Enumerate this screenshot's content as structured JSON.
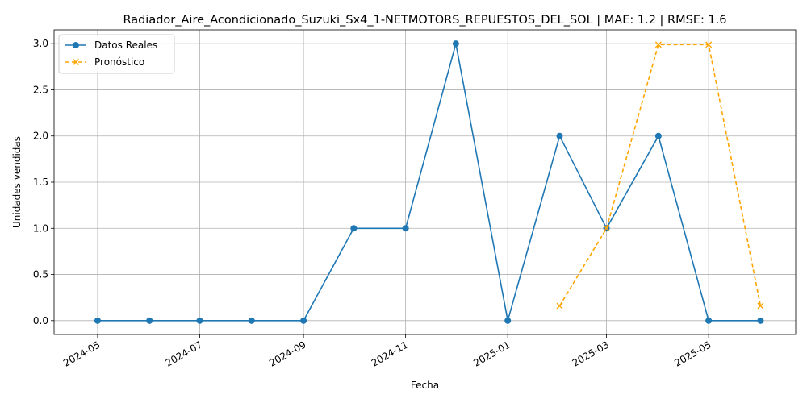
{
  "chart_data": {
    "type": "line",
    "title": "Radiador_Aire_Acondicionado_Suzuki_Sx4_1-NETMOTORS_REPUESTOS_DEL_SOL | MAE: 1.2 | RMSE: 1.6",
    "xlabel": "Fecha",
    "ylabel": "Unidades vendidas",
    "x_ticks": [
      "2024-05",
      "2024-07",
      "2024-09",
      "2024-11",
      "2025-01",
      "2025-03",
      "2025-05"
    ],
    "y_ticks": [
      "0.0",
      "0.5",
      "1.0",
      "1.5",
      "2.0",
      "2.5",
      "3.0"
    ],
    "xlim": [
      "2024-04-05",
      "2025-06-22"
    ],
    "ylim": [
      -0.15,
      3.15
    ],
    "grid": true,
    "legend_position": "top-left",
    "series": [
      {
        "name": "Datos Reales",
        "color": "#1f77b4",
        "style": "solid",
        "marker": "circle",
        "x": [
          "2024-05-01",
          "2024-06-01",
          "2024-07-01",
          "2024-08-01",
          "2024-09-01",
          "2024-10-01",
          "2024-11-01",
          "2024-12-01",
          "2025-01-01",
          "2025-02-01",
          "2025-03-01",
          "2025-04-01",
          "2025-05-01",
          "2025-06-01"
        ],
        "values": [
          0,
          0,
          0,
          0,
          0,
          1,
          1,
          3,
          0,
          2,
          1,
          2,
          0,
          0
        ]
      },
      {
        "name": "Pronóstico",
        "color": "#ffa500",
        "style": "dashed",
        "marker": "x",
        "x": [
          "2025-02-01",
          "2025-03-01",
          "2025-04-01",
          "2025-05-01",
          "2025-06-01"
        ],
        "values": [
          0.16,
          1.0,
          2.99,
          2.99,
          0.16
        ]
      }
    ]
  }
}
